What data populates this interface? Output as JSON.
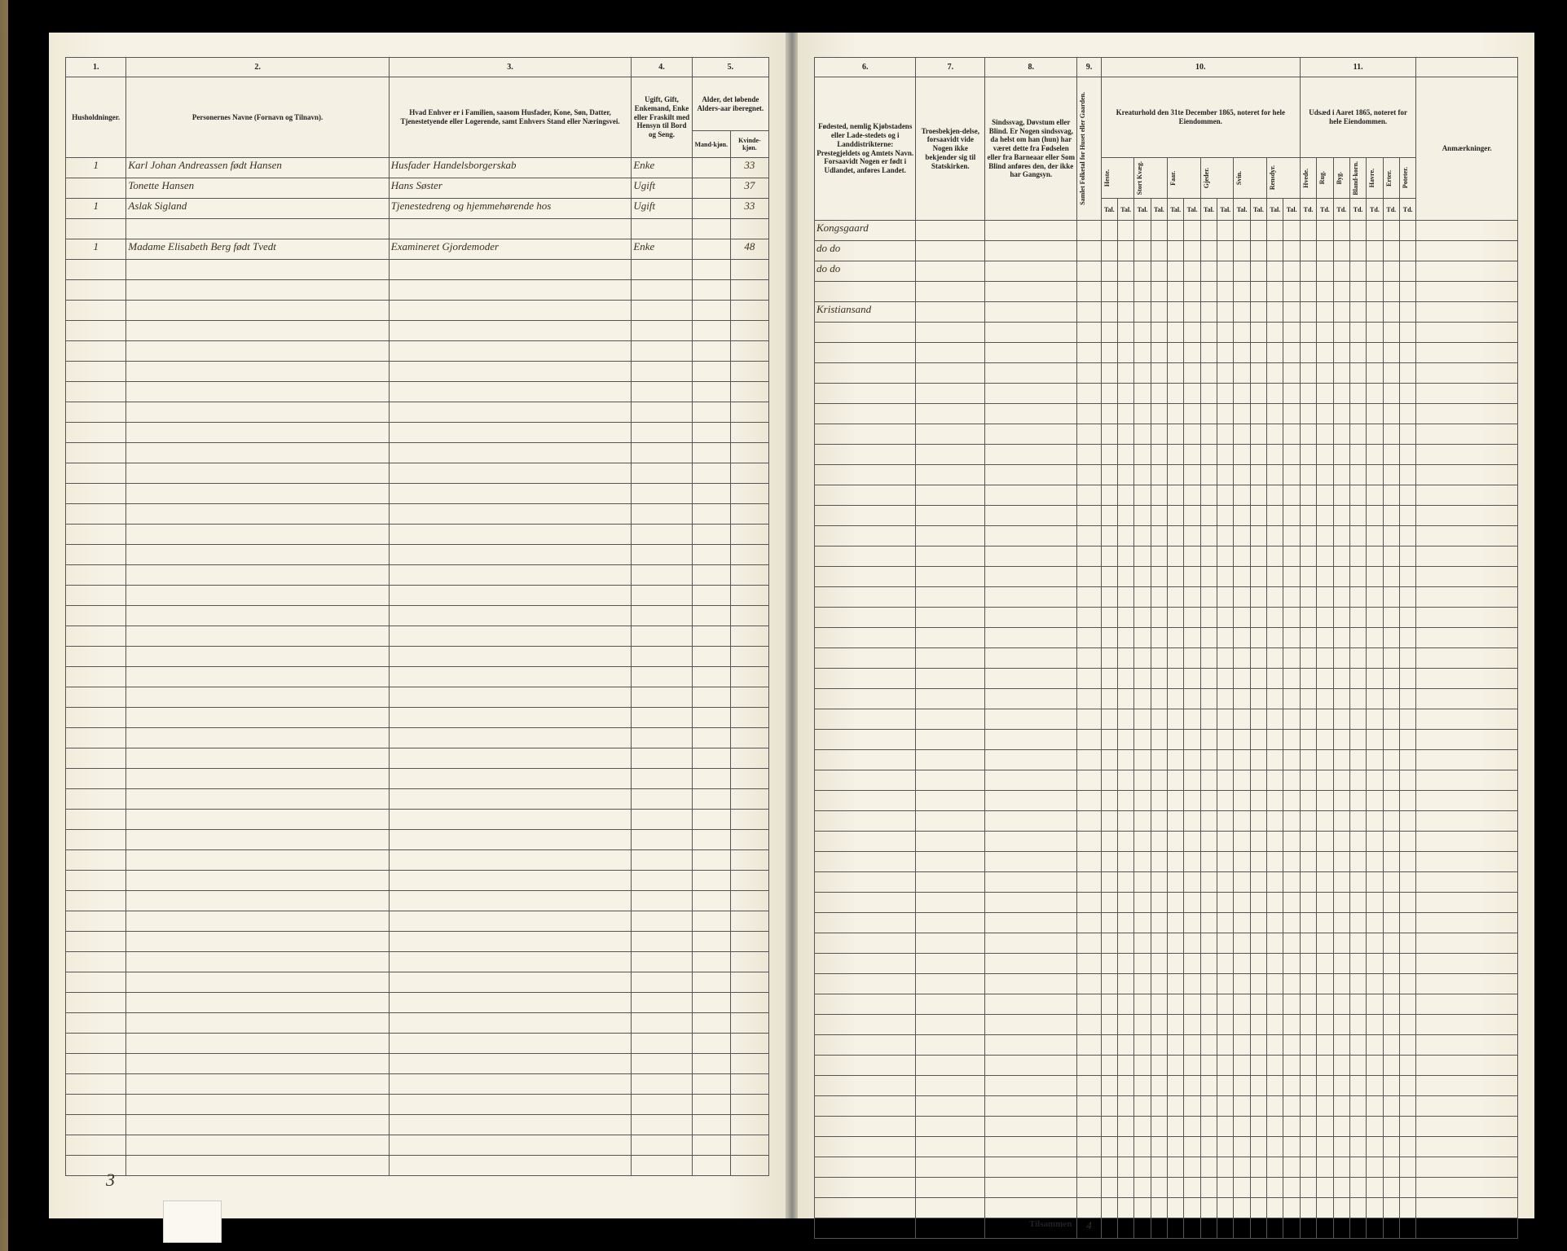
{
  "meta": {
    "document_type": "census_ledger",
    "language": "Norwegian (Dano-Norwegian)",
    "year_reference": "1865"
  },
  "left": {
    "col_numbers": [
      "1.",
      "2.",
      "3.",
      "4.",
      "5."
    ],
    "headers": {
      "c1": "Husholdninger.",
      "c2": "Personernes Navne (Fornavn og Tilnavn).",
      "c3": "Hvad Enhver er i Familien, saasom Husfader, Kone, Søn, Datter, Tjenestetyende eller Logerende, samt Enhvers Stand eller Næringsvei.",
      "c4": "Ugift, Gift, Enkemand, Enke eller Fraskilt med Hensyn til Bord og Seng.",
      "c5": "Alder, det løbende Alders-aar iberegnet.",
      "c5a": "Mand-kjøn.",
      "c5b": "Kvinde-kjøn."
    },
    "rows": [
      {
        "hh": "1",
        "name": "Karl Johan Andreassen født Hansen",
        "rel": "Husfader Handelsborgerskab",
        "civ": "Enke",
        "mk": "",
        "kk": "33"
      },
      {
        "hh": "",
        "name": "Tonette Hansen",
        "rel": "Hans Søster",
        "civ": "Ugift",
        "mk": "",
        "kk": "37"
      },
      {
        "hh": "1",
        "name": "Aslak Sigland",
        "rel": "Tjenestedreng og hjemmehørende hos",
        "civ": "Ugift",
        "mk": "",
        "kk": "33"
      },
      {
        "hh": "",
        "name": "",
        "rel": "",
        "civ": "",
        "mk": "",
        "kk": ""
      },
      {
        "hh": "1",
        "name": "Madame Elisabeth Berg født Tvedt",
        "rel": "Examineret Gjordemoder",
        "civ": "Enke",
        "mk": "",
        "kk": "48"
      }
    ],
    "footer_number": "3"
  },
  "right": {
    "col_numbers": [
      "6.",
      "7.",
      "8.",
      "9.",
      "10.",
      "11.",
      ""
    ],
    "headers": {
      "c6": "Fødested, nemlig Kjøbstadens eller Lade-stedets og i Landdistrikterne: Prestegjeldets og Amtets Navn. Forsaavidt Nogen er født i Udlandet, anføres Landet.",
      "c7": "Troesbekjen-delse, forsaavidt vide Nogen ikke bekjender sig til Statskirken.",
      "c8": "Sindssvag, Døvstum eller Blind. Er Nogen sindssvag, da helst om han (hun) har været dette fra Fødselen eller fra Barneaar eller Som Blind anføres den, der ikke har Gangsyn.",
      "c9": "Samlet Folketal for Huset eller Gaarden.",
      "c10_title": "Kreaturhold den 31te December 1865, noteret for hele Eiendommen.",
      "c10_sub": [
        "Heste.",
        "Stort Kvæg.",
        "Faar.",
        "Gjeder.",
        "Svin.",
        "Rensdyr."
      ],
      "c11_title": "Udsæd i Aaret 1865, noteret for hele Eiendommen.",
      "c11_sub": [
        "Hvede.",
        "Rug.",
        "Byg.",
        "Bland-korn.",
        "Havre.",
        "Erter.",
        "Poteter."
      ],
      "c12": "Anmærkninger."
    },
    "unit_row": {
      "tal": "Tal.",
      "td": "Td."
    },
    "rows": [
      {
        "birthplace": "Kongsgaard",
        "rest": [
          "",
          "",
          "",
          "",
          "",
          "",
          "",
          "",
          "",
          "",
          "",
          "",
          "",
          "",
          "",
          "",
          ""
        ]
      },
      {
        "birthplace": "do      do",
        "rest": [
          "",
          "",
          "",
          "",
          "",
          "",
          "",
          "",
          "",
          "",
          "",
          "",
          "",
          "",
          "",
          "",
          ""
        ]
      },
      {
        "birthplace": "do      do",
        "rest": [
          "",
          "",
          "",
          "",
          "",
          "",
          "",
          "",
          "",
          "",
          "",
          "",
          "",
          "",
          "",
          "",
          ""
        ]
      },
      {
        "birthplace": "",
        "rest": [
          "",
          "",
          "",
          "",
          "",
          "",
          "",
          "",
          "",
          "",
          "",
          "",
          "",
          "",
          "",
          "",
          ""
        ]
      },
      {
        "birthplace": "Kristiansand",
        "rest": [
          "",
          "",
          "",
          "",
          "",
          "",
          "",
          "",
          "",
          "",
          "",
          "",
          "",
          "",
          "",
          "",
          ""
        ]
      }
    ],
    "footer_label": "Tilsammen",
    "footer_value": "4"
  },
  "style": {
    "paper": "#f6f2e6",
    "ink": "#222222",
    "rule": "#555555",
    "script_ink": "#3a3020"
  }
}
